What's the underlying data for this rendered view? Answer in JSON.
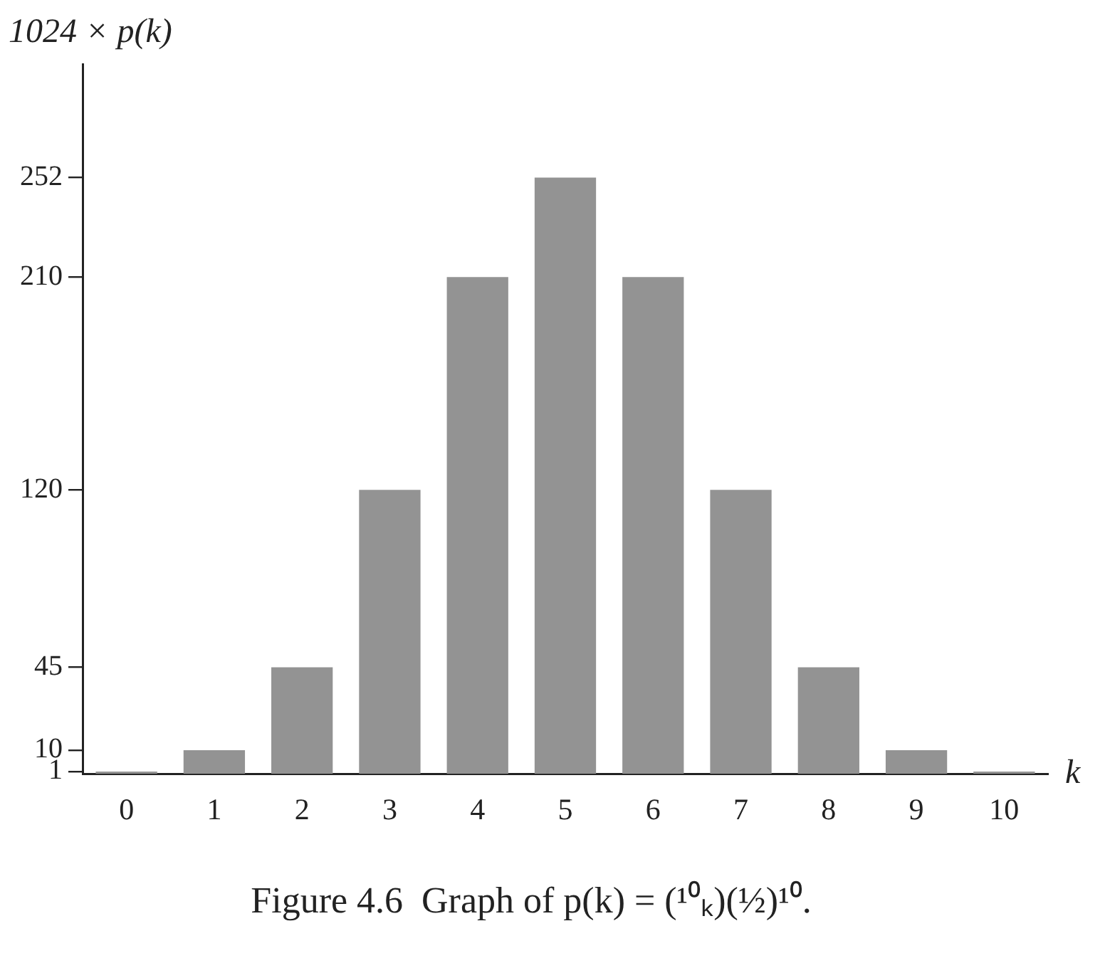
{
  "chart_data": {
    "type": "bar",
    "title": "Figure 4.6  Graph of p(k) = (¹⁰ₖ)(½)¹⁰.",
    "xlabel": "k",
    "ylabel": "1024 × p(k)",
    "categories": [
      "0",
      "1",
      "2",
      "3",
      "4",
      "5",
      "6",
      "7",
      "8",
      "9",
      "10"
    ],
    "values": [
      1,
      10,
      45,
      120,
      210,
      252,
      210,
      120,
      45,
      10,
      1
    ],
    "color": "#939393",
    "ylim": [
      0,
      300
    ],
    "yticks": [
      1,
      10,
      45,
      120,
      210,
      252
    ]
  }
}
